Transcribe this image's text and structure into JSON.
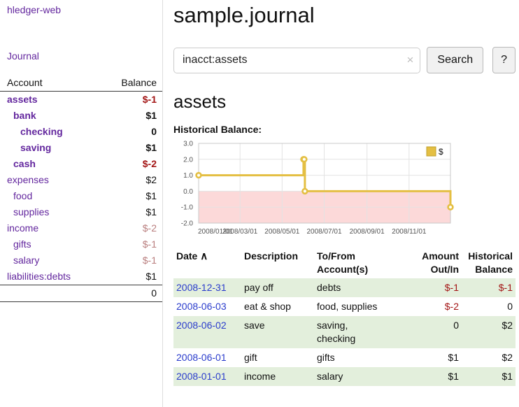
{
  "app": {
    "title": "hledger-web"
  },
  "sidebar": {
    "journal_link": "Journal",
    "header": {
      "account": "Account",
      "balance": "Balance"
    },
    "accounts": [
      {
        "name": "assets",
        "balance": "$-1"
      },
      {
        "name": "bank",
        "balance": "$1"
      },
      {
        "name": "checking",
        "balance": "0"
      },
      {
        "name": "saving",
        "balance": "$1"
      },
      {
        "name": "cash",
        "balance": "$-2"
      },
      {
        "name": "expenses",
        "balance": "$2"
      },
      {
        "name": "food",
        "balance": "$1"
      },
      {
        "name": "supplies",
        "balance": "$1"
      },
      {
        "name": "income",
        "balance": "$-2"
      },
      {
        "name": "gifts",
        "balance": "$-1"
      },
      {
        "name": "salary",
        "balance": "$-1"
      },
      {
        "name": "liabilities:debts",
        "balance": "$1"
      }
    ],
    "total": "0"
  },
  "main": {
    "title": "sample.journal",
    "search": {
      "value": "inacct:assets",
      "clear_icon": "×",
      "button": "Search",
      "help": "?"
    },
    "account_heading": "assets"
  },
  "chart_data": {
    "type": "line",
    "step": true,
    "title": "Historical Balance:",
    "x": [
      "2008-01-01",
      "2008-06-01",
      "2008-06-02",
      "2008-06-03",
      "2008-12-31"
    ],
    "series": [
      {
        "name": "$",
        "color": "#e4bf43",
        "values": [
          1.0,
          2.0,
          2.0,
          0.0,
          -1.0
        ]
      }
    ],
    "xrange": [
      "2008-01-01",
      "2008-12-31"
    ],
    "ylim": [
      -2.0,
      3.0
    ],
    "yticks": [
      3.0,
      2.0,
      1.0,
      0.0,
      -1.0,
      -2.0
    ],
    "xticks": [
      "2008-01-01",
      "2008-03-01",
      "2008-05-01",
      "2008-07-01",
      "2008-09-01",
      "2008-11-01"
    ],
    "xtick_labels": [
      "2008/01/01",
      "2008/03/01",
      "2008/05/01",
      "2008/07/01",
      "2008/09/01",
      "2008/11/01"
    ],
    "grid": true,
    "legend_position": "top-right",
    "negative_region_color": "#fcd9d9"
  },
  "register": {
    "headers": {
      "date": "Date",
      "sort_icon": "∧",
      "description": "Description",
      "account": "To/From\nAccount(s)",
      "amount": "Amount\nOut/In",
      "balance": "Historical\nBalance"
    },
    "rows": [
      {
        "date": "2008-12-31",
        "description": "pay off",
        "account": "debts",
        "amount": "$-1",
        "balance": "$-1"
      },
      {
        "date": "2008-06-03",
        "description": "eat & shop",
        "account": "food, supplies",
        "amount": "$-2",
        "balance": "0"
      },
      {
        "date": "2008-06-02",
        "description": "save",
        "account": "saving,\nchecking",
        "amount": "0",
        "balance": "$2"
      },
      {
        "date": "2008-06-01",
        "description": "gift",
        "account": "gifts",
        "amount": "$1",
        "balance": "$2"
      },
      {
        "date": "2008-01-01",
        "description": "income",
        "account": "salary",
        "amount": "$1",
        "balance": "$1"
      }
    ]
  }
}
